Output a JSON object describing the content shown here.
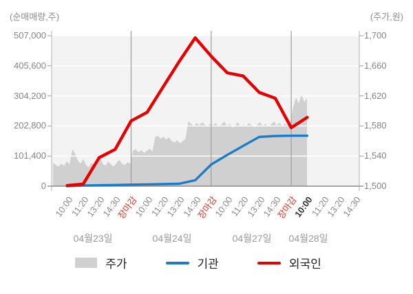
{
  "header": {
    "left_axis_title": "(순매매량,주)",
    "right_axis_title": "(주가,원)"
  },
  "colors": {
    "plot_bg": "#f3f3f3",
    "grid": "#ffffff",
    "axis_line": "#8a8a8a",
    "side_axis_line": "#b3b3b3",
    "day_line": "#9c9c9c",
    "price_fill": "#d0d0d0",
    "institution": "#1a7cc8",
    "foreigner": "#e60000",
    "close_label": "#e53328",
    "current_label": "#2e2e2e",
    "tick_label": "#848484",
    "date_label": "#999999"
  },
  "legend": {
    "items": [
      {
        "label": "주가",
        "type": "area",
        "series": "price"
      },
      {
        "label": "기관",
        "type": "line",
        "series": "institution"
      },
      {
        "label": "외국인",
        "type": "line",
        "series": "foreigner"
      }
    ]
  },
  "chart_data": {
    "type": "combo: area (price, right axis) + 2 lines (net buying volume, left axis)",
    "title": "",
    "legend_position": "bottom",
    "grid": "on",
    "left_axis": {
      "title": "(순매매량,주)",
      "range": [
        0,
        507000
      ],
      "ticks": [
        0,
        101400,
        202800,
        304200,
        405600,
        507000
      ],
      "tick_labels": [
        "0",
        "101,400",
        "202,800",
        "304,200",
        "405,600",
        "507,000"
      ]
    },
    "right_axis": {
      "title": "(주가,원)",
      "range": [
        1500,
        1700
      ],
      "ticks": [
        1500,
        1540,
        1580,
        1620,
        1660,
        1700
      ],
      "tick_labels": [
        "1,500",
        "1,540",
        "1,580",
        "1,620",
        "1,660",
        "1,700"
      ]
    },
    "x_labels": [
      {
        "text": "10:00",
        "type": "time"
      },
      {
        "text": "11:20",
        "type": "time"
      },
      {
        "text": "13:20",
        "type": "time"
      },
      {
        "text": "14:30",
        "type": "time"
      },
      {
        "text": "장마감",
        "type": "close"
      },
      {
        "text": "10:00",
        "type": "time"
      },
      {
        "text": "11:20",
        "type": "time"
      },
      {
        "text": "13:20",
        "type": "time"
      },
      {
        "text": "14:30",
        "type": "time"
      },
      {
        "text": "장마감",
        "type": "close"
      },
      {
        "text": "10:00",
        "type": "time"
      },
      {
        "text": "11:20",
        "type": "time"
      },
      {
        "text": "13:20",
        "type": "time"
      },
      {
        "text": "14:30",
        "type": "time"
      },
      {
        "text": "장마감",
        "type": "close"
      },
      {
        "text": "10:00",
        "type": "current"
      },
      {
        "text": "11:20",
        "type": "time"
      },
      {
        "text": "13:20",
        "type": "time"
      },
      {
        "text": "14:30",
        "type": "time"
      }
    ],
    "day_separator_after_slots": [
      4,
      9,
      14
    ],
    "dates": [
      {
        "label": "04월23일"
      },
      {
        "label": "04월24일"
      },
      {
        "label": "04월27일"
      },
      {
        "label": "04월28일"
      }
    ],
    "series": [
      {
        "name": "주가",
        "axis": "right",
        "type": "area",
        "unit": "원",
        "values_at_slots": [
          1532,
          1536,
          1533,
          1531,
          1530,
          1548,
          1550,
          1565,
          1560,
          1582,
          1580,
          1581,
          1580,
          1582,
          1585,
          1615
        ],
        "dense_path": [
          1531,
          1528,
          1526,
          1530,
          1527,
          1533,
          1529,
          1549,
          1543,
          1534,
          1530,
          1536,
          1528,
          1525,
          1531,
          1527,
          1534,
          1538,
          1530,
          1527,
          1533,
          1529,
          1526,
          1531,
          1535,
          1530,
          1528,
          1532,
          1530,
          1547,
          1549,
          1545,
          1548,
          1544,
          1547,
          1550,
          1546,
          1565,
          1567,
          1563,
          1566,
          1562,
          1565,
          1560,
          1558,
          1561,
          1557,
          1560,
          1563,
          1586,
          1583,
          1580,
          1584,
          1581,
          1585,
          1582,
          1580,
          1583,
          1581,
          1584,
          1579,
          1582,
          1586,
          1580,
          1583,
          1578,
          1581,
          1585,
          1579,
          1582,
          1580,
          1584,
          1581,
          1578,
          1582,
          1585,
          1580,
          1583,
          1579,
          1582,
          1586,
          1581,
          1584,
          1580,
          1583,
          1581,
          1585,
          1605,
          1618,
          1610,
          1622,
          1612,
          1617
        ]
      },
      {
        "name": "기관",
        "axis": "left",
        "type": "line",
        "unit": "주",
        "values_at_slots": [
          0,
          2000,
          3000,
          4000,
          5000,
          6000,
          7000,
          8000,
          20000,
          73000,
          105000,
          136000,
          166000,
          169000,
          170000,
          170000
        ]
      },
      {
        "name": "외국인",
        "axis": "left",
        "type": "line",
        "unit": "주",
        "values_at_slots": [
          2000,
          7000,
          96000,
          124000,
          220000,
          249000,
          335000,
          420000,
          500000,
          438000,
          382000,
          371000,
          316000,
          296000,
          197000,
          232000
        ]
      }
    ]
  }
}
